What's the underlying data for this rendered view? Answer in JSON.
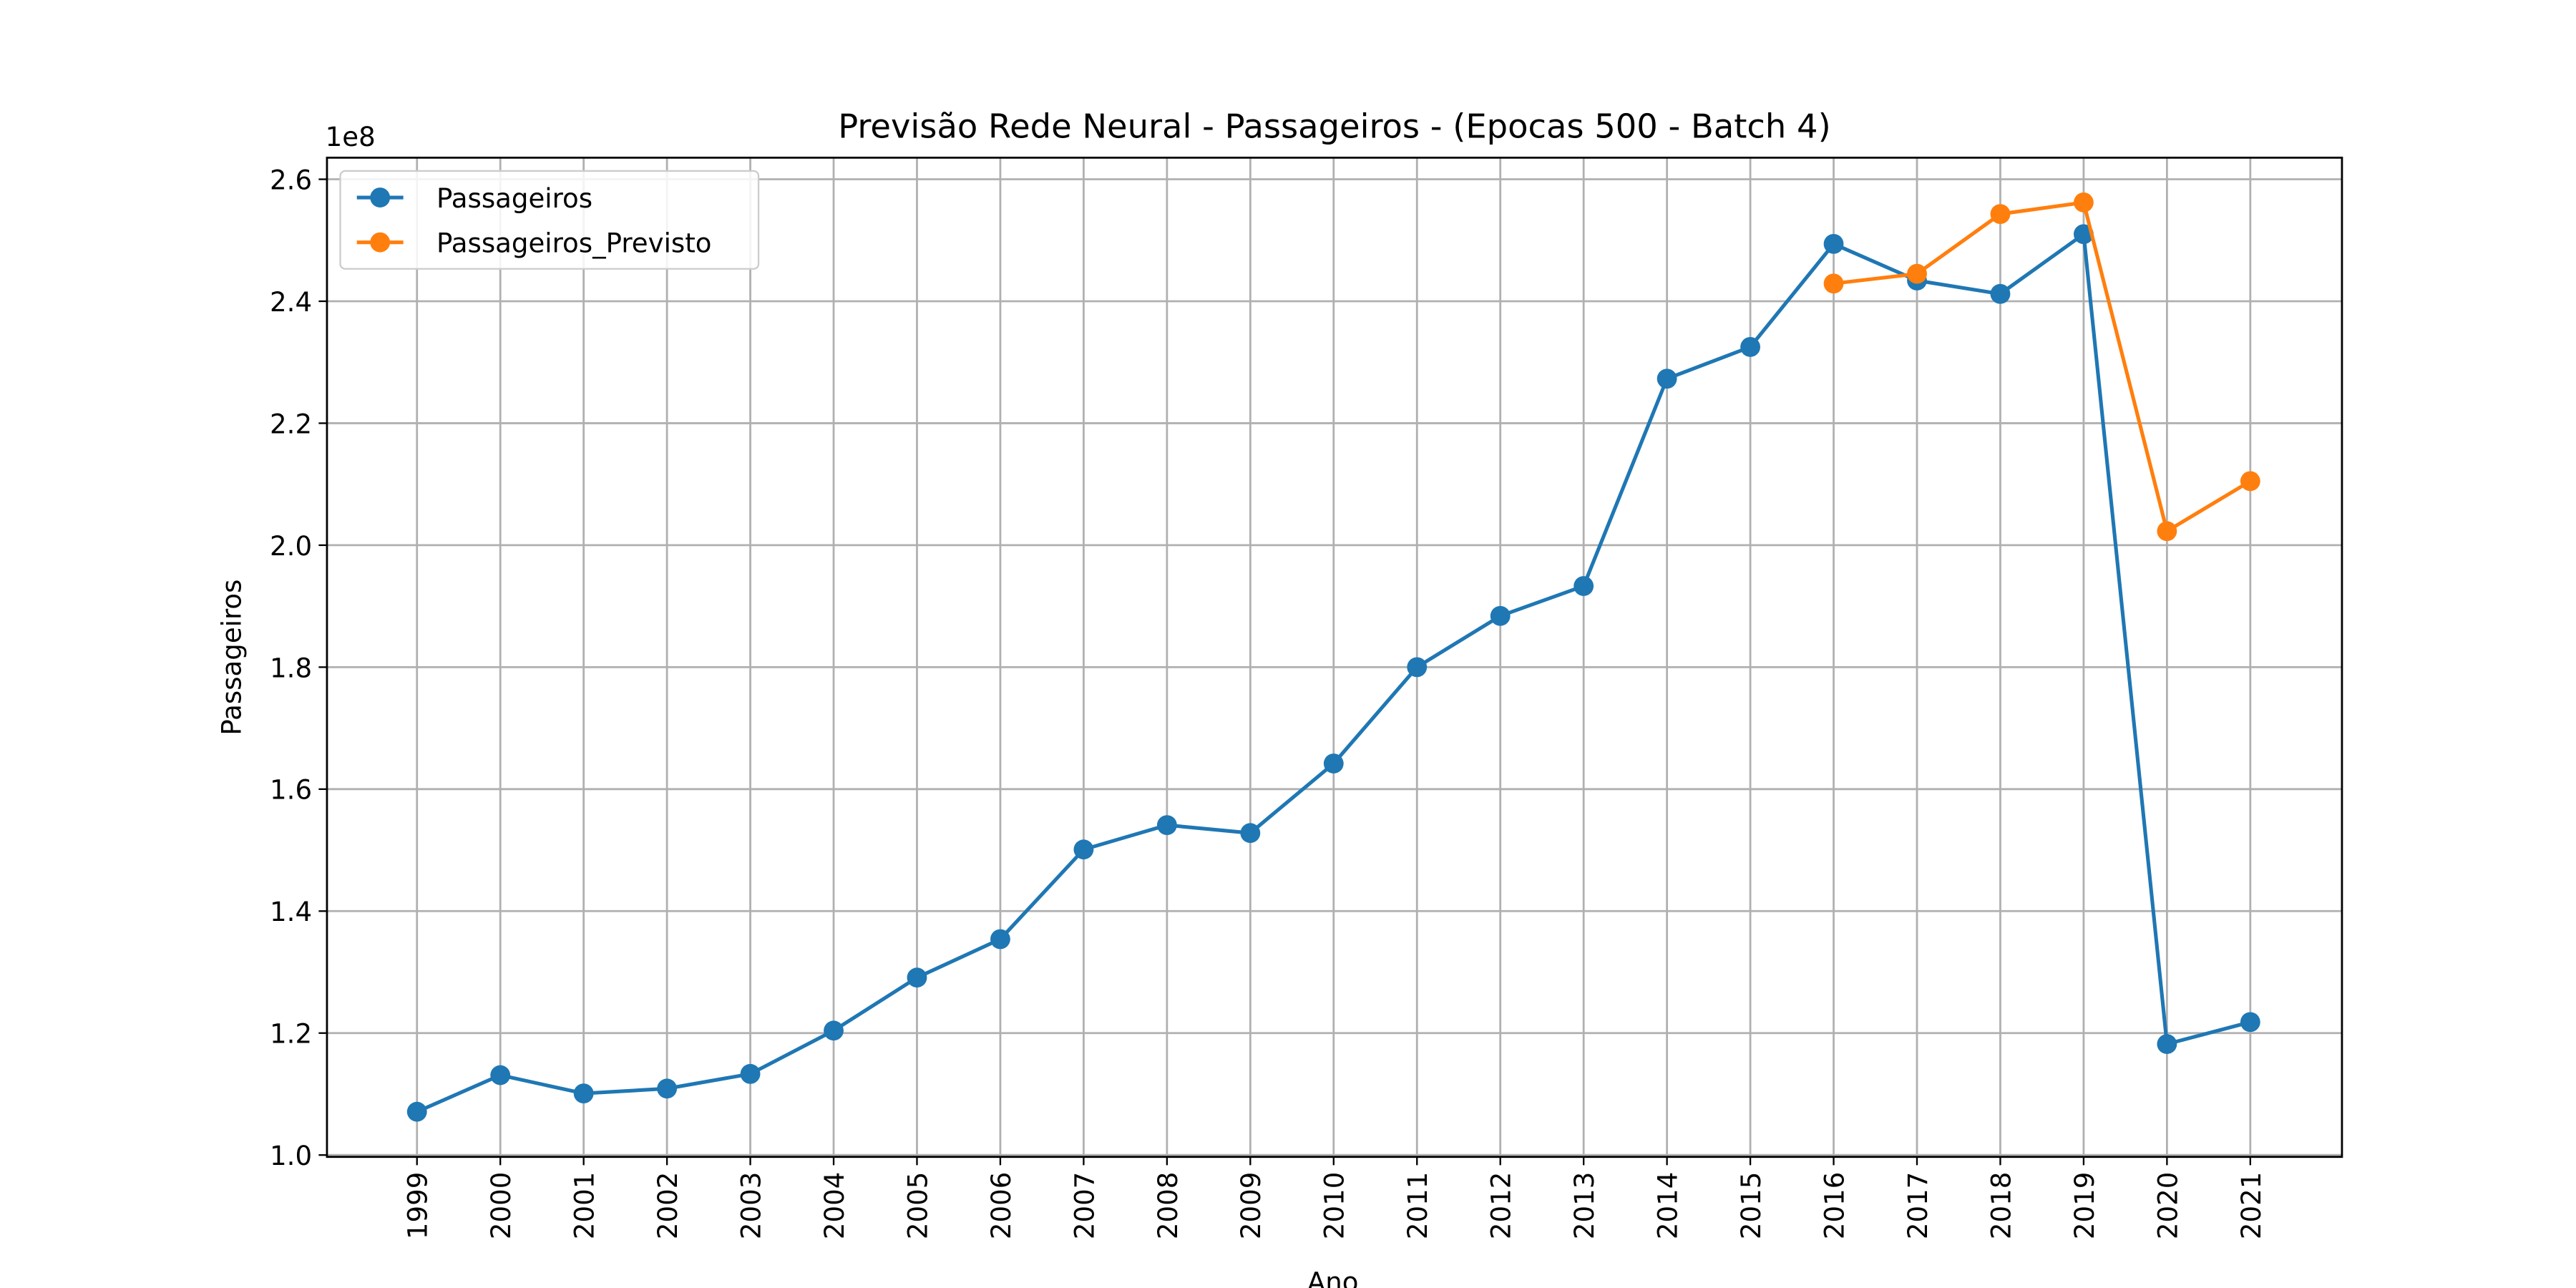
{
  "chart_data": {
    "type": "line",
    "title": "Previsão Rede Neural - Passageiros - (Epocas 500 - Batch 4)",
    "x_label": "Ano",
    "y_label": "Passageiros",
    "y_offset_label": "1e8",
    "x": [
      1999,
      2000,
      2001,
      2002,
      2003,
      2004,
      2005,
      2006,
      2007,
      2008,
      2009,
      2010,
      2011,
      2012,
      2013,
      2014,
      2015,
      2016,
      2017,
      2018,
      2019,
      2020,
      2021
    ],
    "series": [
      {
        "name": "Passageiros",
        "color": "#1f77b4",
        "values": [
          107100000,
          113100000,
          110100000,
          110900000,
          113300000,
          120400000,
          129100000,
          135400000,
          150100000,
          154100000,
          152800000,
          164200000,
          180000000,
          188400000,
          193300000,
          227300000,
          232500000,
          249400000,
          243400000,
          241200000,
          251000000,
          118200000,
          121800000
        ]
      },
      {
        "name": "Passageiros_Previsto",
        "color": "#ff7f0e",
        "values": [
          null,
          null,
          null,
          null,
          null,
          null,
          null,
          null,
          null,
          null,
          null,
          null,
          null,
          null,
          null,
          null,
          null,
          242900000,
          244500000,
          254300000,
          256200000,
          202300000,
          210500000
        ]
      }
    ],
    "xlim": [
      1997.92,
      2022.1
    ],
    "ylim": [
      99700000,
      263540000
    ],
    "xticks": [
      1999,
      2000,
      2001,
      2002,
      2003,
      2004,
      2005,
      2006,
      2007,
      2008,
      2009,
      2010,
      2011,
      2012,
      2013,
      2014,
      2015,
      2016,
      2017,
      2018,
      2019,
      2020,
      2021
    ],
    "yticks": [
      {
        "value": 100000000,
        "label": "1.0"
      },
      {
        "value": 120000000,
        "label": "1.2"
      },
      {
        "value": 140000000,
        "label": "1.4"
      },
      {
        "value": 160000000,
        "label": "1.6"
      },
      {
        "value": 180000000,
        "label": "1.8"
      },
      {
        "value": 200000000,
        "label": "2.0"
      },
      {
        "value": 220000000,
        "label": "2.2"
      },
      {
        "value": 240000000,
        "label": "2.4"
      },
      {
        "value": 260000000,
        "label": "2.6"
      }
    ],
    "grid": true,
    "legend": "upper left"
  }
}
